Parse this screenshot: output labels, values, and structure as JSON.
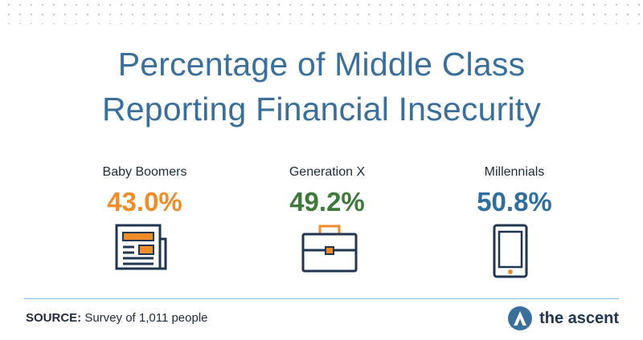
{
  "title_line1": "Percentage of Middle Class",
  "title_line2": "Reporting Financial Insecurity",
  "chart_data": {
    "type": "table",
    "categories": [
      "Baby Boomers",
      "Generation X",
      "Millennials"
    ],
    "values": [
      "43.0%",
      "49.2%",
      "50.8%"
    ],
    "colors": [
      "#f28c28",
      "#3d7a3a",
      "#2f6fa0"
    ],
    "icons": [
      "newspaper-icon",
      "briefcase-icon",
      "tablet-icon"
    ]
  },
  "source": {
    "label": "SOURCE:",
    "text": " Survey of 1,011 people"
  },
  "brand": {
    "name": "the ascent",
    "color": "#3a6f9c"
  }
}
